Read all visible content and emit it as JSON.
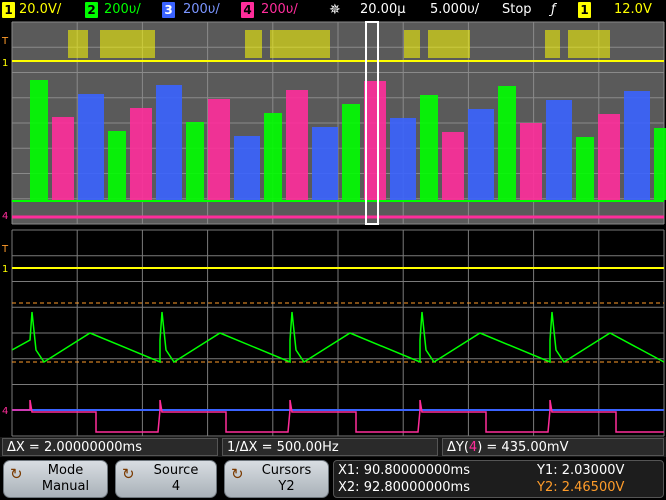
{
  "status": {
    "ch1_num": "1",
    "ch1_scale": "20.0V/",
    "ch2_num": "2",
    "ch2_scale": "200υ/",
    "ch3_num": "3",
    "ch3_scale": "200υ/",
    "ch4_num": "4",
    "ch4_scale": "200υ/",
    "trigger_pos": "20.00µ",
    "timebase": "5.000υ/",
    "run_state": "Stop",
    "trig_src": "1",
    "trig_level": "12.0V"
  },
  "colors": {
    "ch1": "#ffff00",
    "ch2": "#00ff00",
    "ch3": "#3a63ff",
    "ch4": "#ff2d9b",
    "grid": "#7a7a7a"
  },
  "markers": {
    "trigger": "T",
    "ch1": "1",
    "ch4": "4"
  },
  "measurements": {
    "delta_x": "ΔX = 2.00000000ms",
    "inv_delta_x": "1/ΔX = 500.00Hz",
    "delta_y_prefix": "ΔY(",
    "delta_y_src": "4",
    "delta_y_suffix": ") = 435.00mV"
  },
  "softkeys": {
    "mode_label": "Mode",
    "mode_value": "Manual",
    "source_label": "Source",
    "source_value": "4",
    "cursors_label": "Cursors",
    "cursors_value": "Y2"
  },
  "cursor_readout": {
    "x1": "X1: 90.80000000ms",
    "x2": "X2: 92.80000000ms",
    "y1": "Y1: 2.03000V",
    "y2": "Y2: 2.46500V"
  },
  "icons": [
    "rotate-knob-icon",
    "trigger-position-icon",
    "trigger-edge-icon"
  ]
}
